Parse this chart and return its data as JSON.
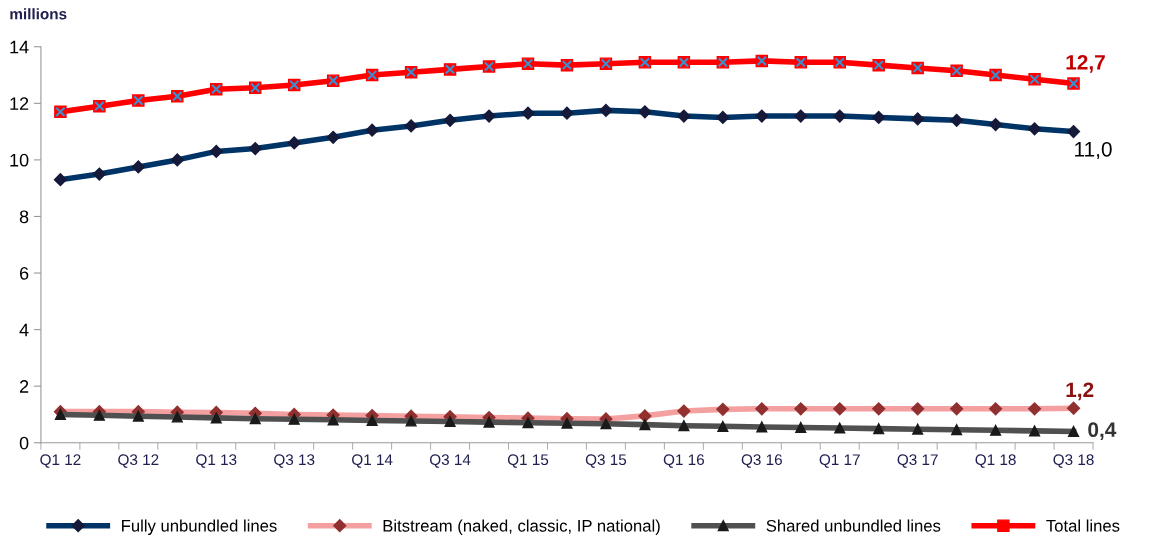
{
  "chart_data": {
    "type": "line",
    "ylabel": "millions",
    "categories": [
      "Q1 12",
      null,
      "Q3 12",
      null,
      "Q1 13",
      null,
      "Q3 13",
      null,
      "Q1 14",
      null,
      "Q3 14",
      null,
      "Q1 15",
      null,
      "Q3 15",
      null,
      "Q1 16",
      null,
      "Q3 16",
      null,
      "Q1 17",
      null,
      "Q3 17",
      null,
      "Q1 18",
      null,
      "Q3 18"
    ],
    "series": [
      {
        "name": "Fully unbundled lines",
        "color": "#003366",
        "marker": "diamond",
        "values": [
          9.3,
          9.5,
          9.75,
          10.0,
          10.3,
          10.4,
          10.6,
          10.8,
          11.05,
          11.2,
          11.4,
          11.55,
          11.65,
          11.65,
          11.75,
          11.7,
          11.55,
          11.5,
          11.55,
          11.55,
          11.55,
          11.5,
          11.45,
          11.4,
          11.25,
          11.1,
          11.0
        ]
      },
      {
        "name": "Bitstream (naked, classic, IP national)",
        "color": "#f4a0a0",
        "marker": "diamond",
        "values": [
          1.1,
          1.1,
          1.1,
          1.08,
          1.07,
          1.04,
          1.0,
          0.98,
          0.96,
          0.94,
          0.92,
          0.89,
          0.87,
          0.85,
          0.84,
          0.95,
          1.12,
          1.18,
          1.2,
          1.2,
          1.2,
          1.2,
          1.2,
          1.2,
          1.2,
          1.2,
          1.22
        ]
      },
      {
        "name": "Shared unbundled lines",
        "color": "#505050",
        "marker": "triangle",
        "values": [
          1.0,
          0.97,
          0.94,
          0.91,
          0.88,
          0.85,
          0.83,
          0.81,
          0.79,
          0.77,
          0.75,
          0.73,
          0.71,
          0.69,
          0.67,
          0.64,
          0.6,
          0.58,
          0.56,
          0.54,
          0.52,
          0.5,
          0.48,
          0.46,
          0.44,
          0.42,
          0.4
        ]
      },
      {
        "name": "Total lines",
        "color": "#ff0000",
        "marker": "square",
        "values": [
          11.7,
          11.9,
          12.1,
          12.25,
          12.5,
          12.55,
          12.65,
          12.8,
          13.0,
          13.1,
          13.2,
          13.3,
          13.4,
          13.35,
          13.4,
          13.45,
          13.45,
          13.45,
          13.5,
          13.45,
          13.45,
          13.35,
          13.25,
          13.15,
          13.0,
          12.85,
          12.7
        ]
      }
    ],
    "annotations": [
      {
        "text": "12,7",
        "x": "Q3 18",
        "y": 12.7
      },
      {
        "text": "11,0",
        "x": "Q3 18",
        "y": 11.0
      },
      {
        "text": "1,2",
        "x": "Q3 18",
        "y": 1.22
      },
      {
        "text": "0,4",
        "x": "Q3 18",
        "y": 0.4
      }
    ],
    "ylim": [
      0,
      14
    ],
    "yticks": [
      0,
      2,
      4,
      6,
      8,
      10,
      12,
      14
    ],
    "grid": false,
    "legend": "bottom",
    "line_style": "solid"
  }
}
